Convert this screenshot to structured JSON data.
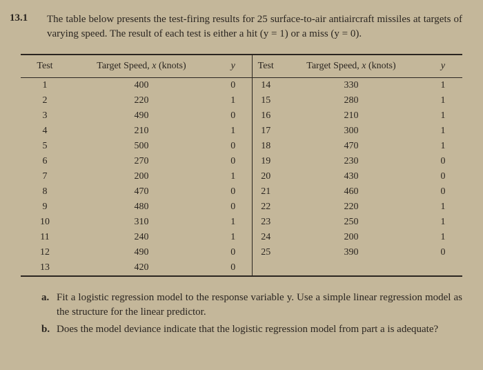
{
  "problem_number": "13.1",
  "intro_text": "The table below presents the test-firing results for 25 surface-to-air antiaircraft missiles at targets of varying speed. The result of each test is either a hit (y = 1) or a miss (y = 0).",
  "headers": {
    "test": "Test",
    "speed_html": "Target Speed, <span class=\"italic\">x</span> (knots)",
    "y": "y"
  },
  "rows": [
    {
      "t1": "1",
      "s1": "400",
      "y1": "0",
      "t2": "14",
      "s2": "330",
      "y2": "1"
    },
    {
      "t1": "2",
      "s1": "220",
      "y1": "1",
      "t2": "15",
      "s2": "280",
      "y2": "1"
    },
    {
      "t1": "3",
      "s1": "490",
      "y1": "0",
      "t2": "16",
      "s2": "210",
      "y2": "1"
    },
    {
      "t1": "4",
      "s1": "210",
      "y1": "1",
      "t2": "17",
      "s2": "300",
      "y2": "1"
    },
    {
      "t1": "5",
      "s1": "500",
      "y1": "0",
      "t2": "18",
      "s2": "470",
      "y2": "1"
    },
    {
      "t1": "6",
      "s1": "270",
      "y1": "0",
      "t2": "19",
      "s2": "230",
      "y2": "0"
    },
    {
      "t1": "7",
      "s1": "200",
      "y1": "1",
      "t2": "20",
      "s2": "430",
      "y2": "0"
    },
    {
      "t1": "8",
      "s1": "470",
      "y1": "0",
      "t2": "21",
      "s2": "460",
      "y2": "0"
    },
    {
      "t1": "9",
      "s1": "480",
      "y1": "0",
      "t2": "22",
      "s2": "220",
      "y2": "1"
    },
    {
      "t1": "10",
      "s1": "310",
      "y1": "1",
      "t2": "23",
      "s2": "250",
      "y2": "1"
    },
    {
      "t1": "11",
      "s1": "240",
      "y1": "1",
      "t2": "24",
      "s2": "200",
      "y2": "1"
    },
    {
      "t1": "12",
      "s1": "490",
      "y1": "0",
      "t2": "25",
      "s2": "390",
      "y2": "0"
    },
    {
      "t1": "13",
      "s1": "420",
      "y1": "0",
      "t2": "",
      "s2": "",
      "y2": ""
    }
  ],
  "questions": {
    "a": {
      "label": "a.",
      "text": "Fit a logistic regression model to the response variable y. Use a simple linear regression model as the structure for the linear predictor."
    },
    "b": {
      "label": "b.",
      "text": "Does the model deviance indicate that the logistic regression model from part a is adequate?"
    }
  },
  "colors": {
    "background": "#c4b79a",
    "text": "#2a2520",
    "border": "#2a2520"
  }
}
